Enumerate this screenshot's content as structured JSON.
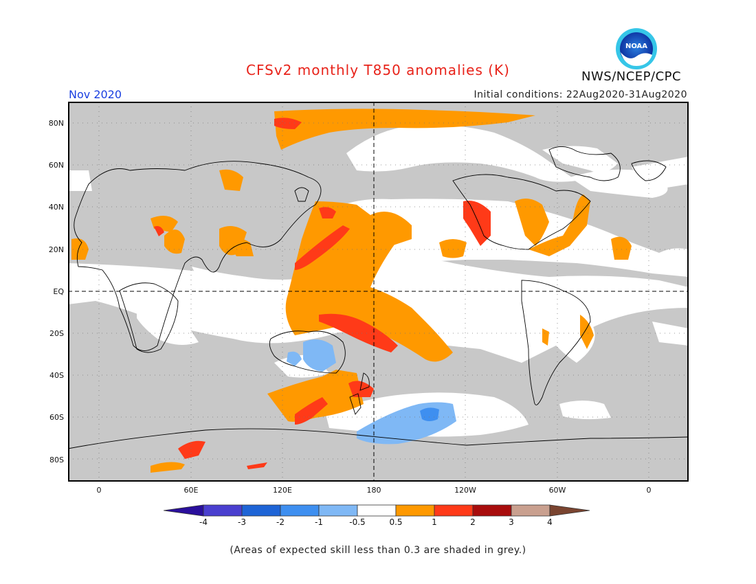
{
  "title": "CFSv2 monthly T850 anomalies (K)",
  "valid_month": "Nov 2020",
  "initial_conditions": "Initial conditions: 22Aug2020-31Aug2020",
  "organization": "NWS/NCEP/CPC",
  "logo_text": "NOAA",
  "lat_labels": [
    "80N",
    "60N",
    "40N",
    "20N",
    "EQ",
    "20S",
    "40S",
    "60S",
    "80S"
  ],
  "lon_labels": [
    "0",
    "60E",
    "120E",
    "180",
    "120W",
    "60W",
    "0"
  ],
  "colorbar": {
    "labels": [
      "-4",
      "-3",
      "-2",
      "-1",
      "-0.5",
      "0.5",
      "1",
      "2",
      "3",
      "4"
    ],
    "colors": [
      "#2a0f9c",
      "#4a3fcf",
      "#1e64d6",
      "#3e8ff0",
      "#7fb8f5",
      "#ffffff",
      "#ff9900",
      "#ff3a18",
      "#a80c0c",
      "#c9a08f",
      "#7a4430"
    ]
  },
  "map_colors": {
    "skill_grey": "#c8c8c8",
    "ocean_white": "#ffffff"
  },
  "footnote": "(Areas of expected skill less than 0.3 are shaded in grey.)"
}
